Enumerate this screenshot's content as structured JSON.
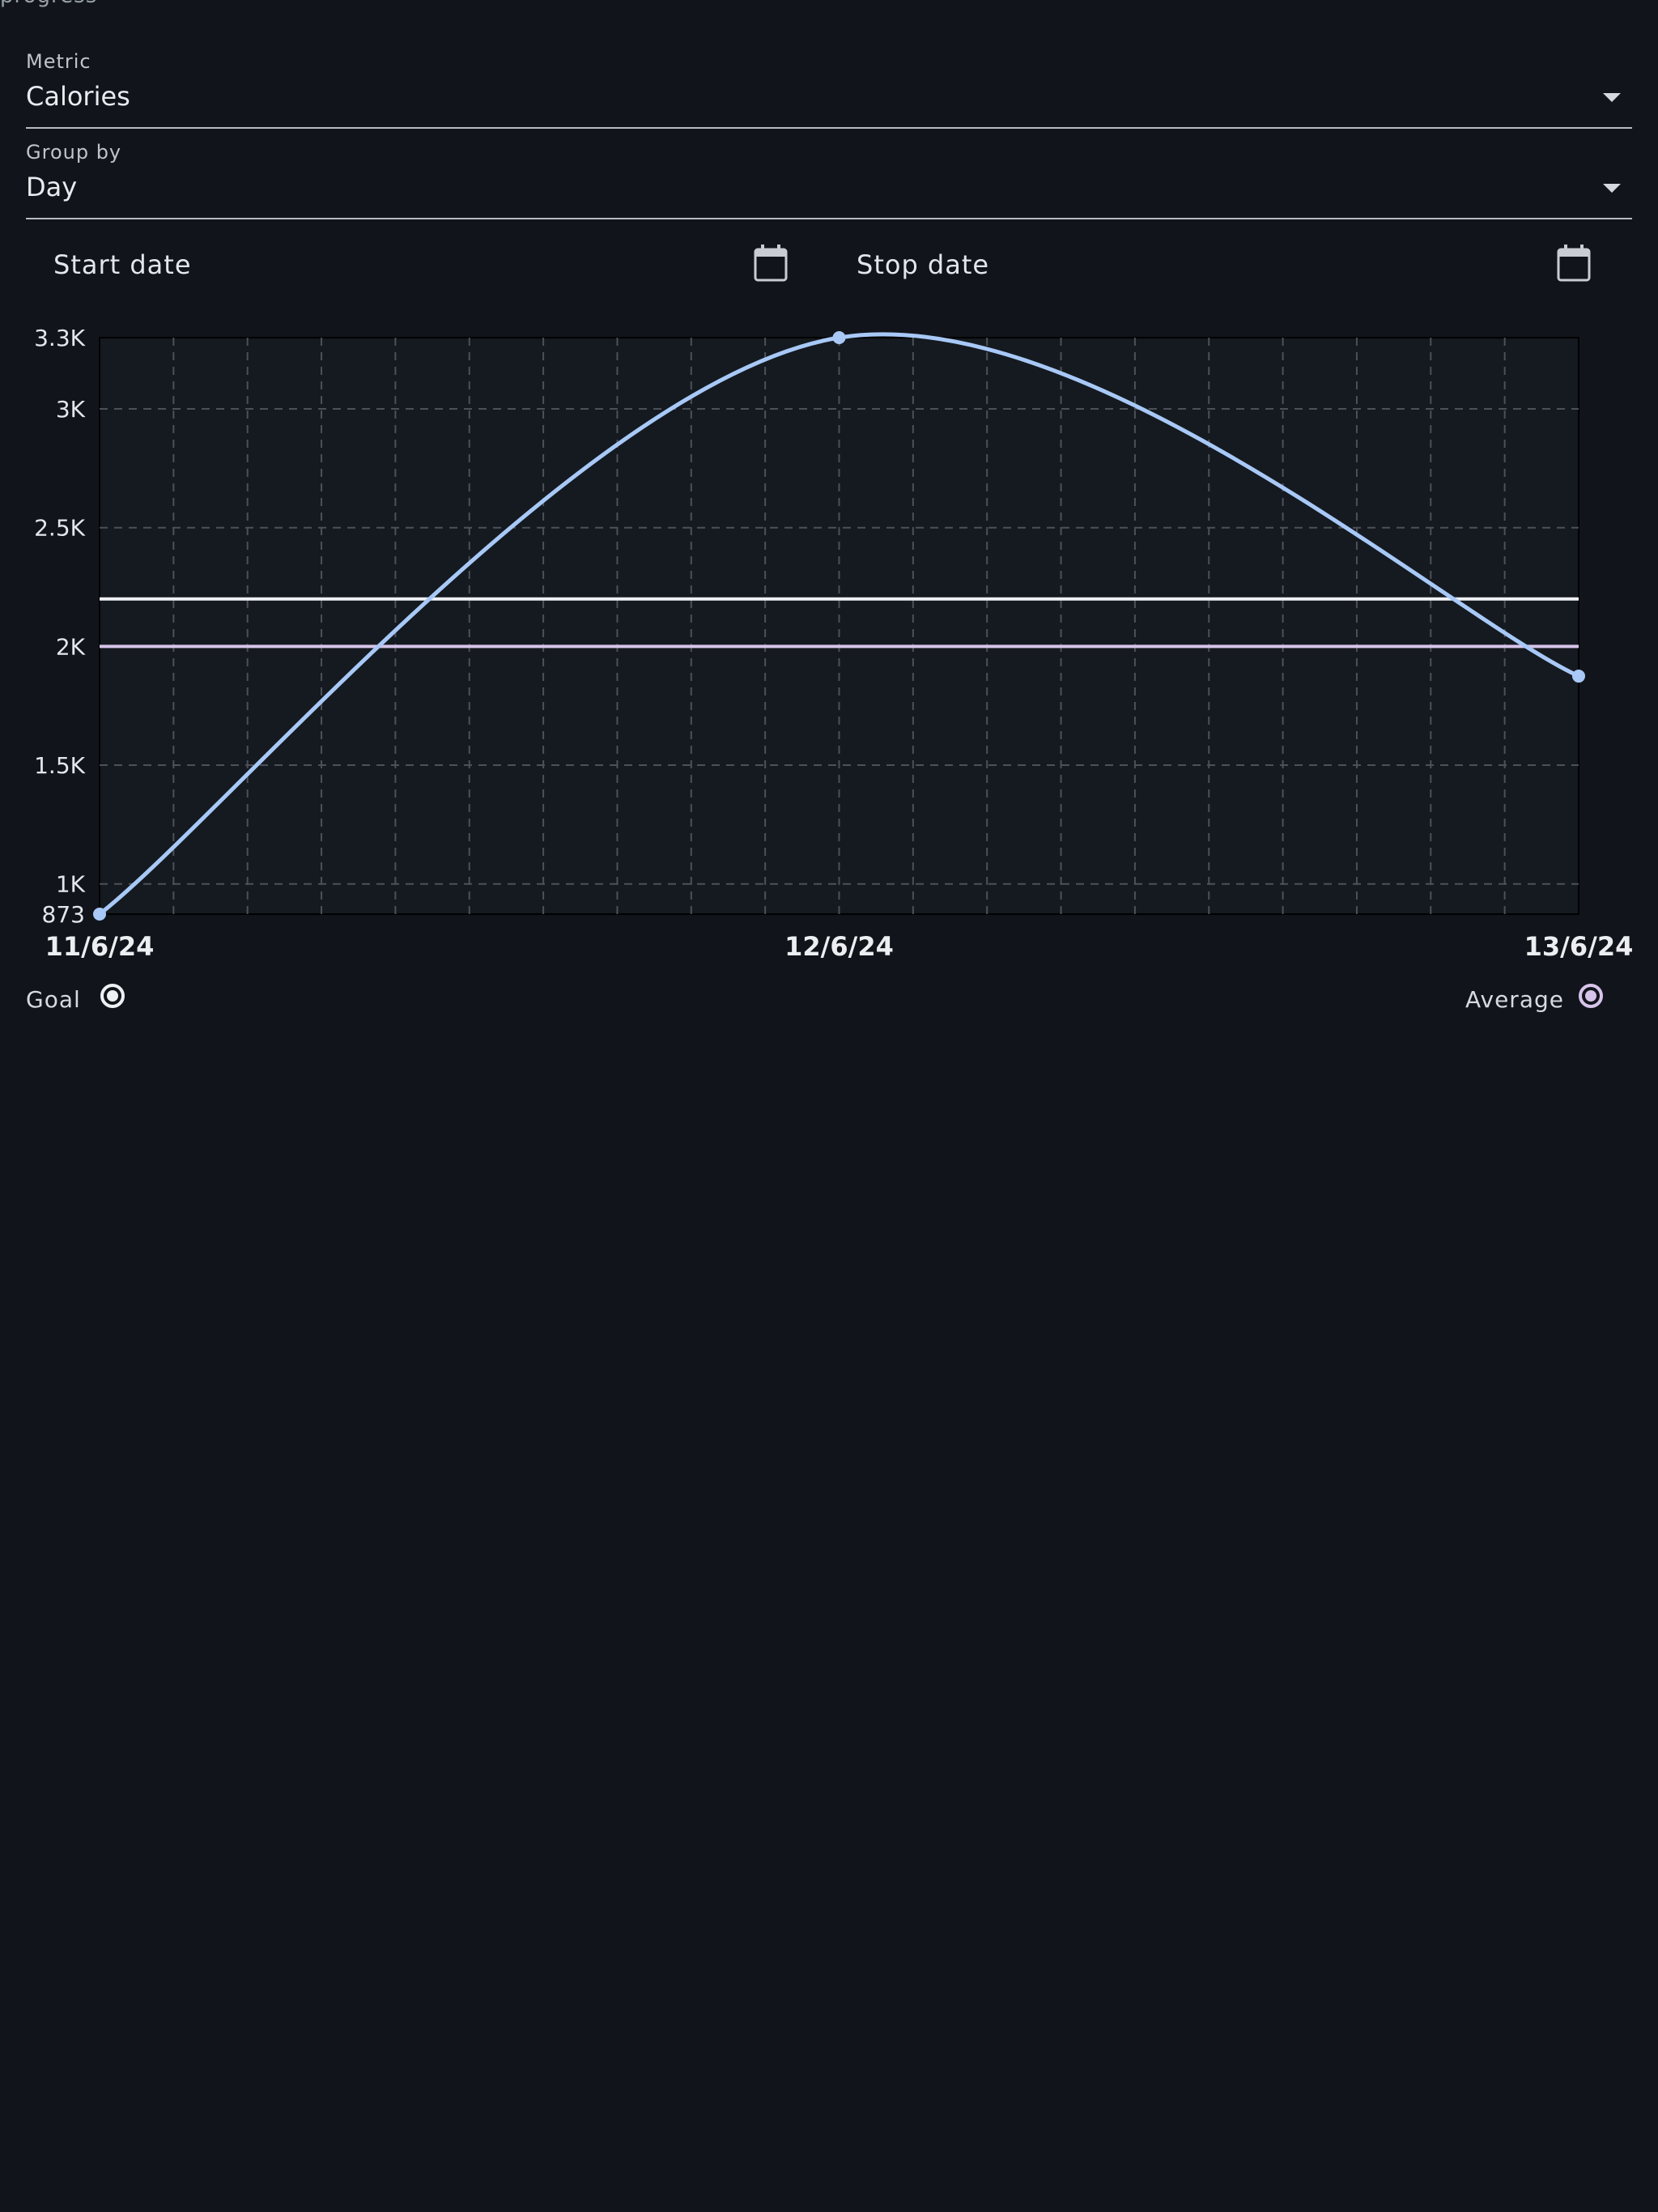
{
  "top_cut_text": "progress",
  "metric": {
    "label": "Metric",
    "value": "Calories"
  },
  "group_by": {
    "label": "Group by",
    "value": "Day"
  },
  "start_date": {
    "label": "Start date",
    "icon": "calendar-icon"
  },
  "stop_date": {
    "label": "Stop date",
    "icon": "calendar-icon"
  },
  "colors": {
    "background": "#11151b",
    "chart_background": "#151a20",
    "series": "#a8c9f7",
    "goal": "#eef0f4",
    "average": "#d7c4ea",
    "grid": "#4c5058"
  },
  "chart_data": {
    "type": "line",
    "x": [
      "11/6/24",
      "12/6/24",
      "13/6/24"
    ],
    "xticks": [
      "11/6/24",
      "12/6/24",
      "13/6/24"
    ],
    "series": [
      {
        "values": [
          873,
          3300,
          1875
        ],
        "smooth": true
      }
    ],
    "reference_lines": [
      {
        "name": "Goal",
        "value": 2200
      },
      {
        "name": "Average",
        "value": 2000
      }
    ],
    "yticks": [
      {
        "value": 873,
        "label": "873"
      },
      {
        "value": 1000,
        "label": "1K"
      },
      {
        "value": 1500,
        "label": "1.5K"
      },
      {
        "value": 2000,
        "label": "2K"
      },
      {
        "value": 2500,
        "label": "2.5K"
      },
      {
        "value": 3000,
        "label": "3K"
      },
      {
        "value": 3300,
        "label": "3.3K"
      }
    ],
    "ylim": [
      873,
      3300
    ],
    "grid": true,
    "legend_placement": "bottom"
  },
  "legend": {
    "goal_label": "Goal",
    "average_label": "Average"
  }
}
